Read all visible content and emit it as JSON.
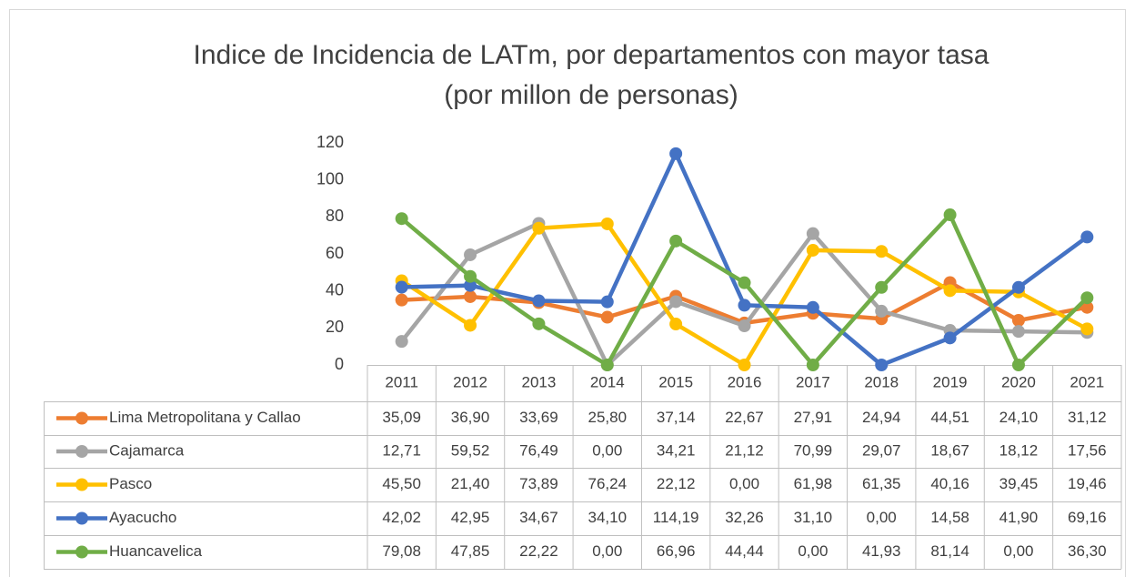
{
  "chart_data": {
    "type": "line",
    "title": "Indice de Incidencia de LATm, por departamentos con mayor tasa",
    "subtitle": "(por millon de personas)",
    "categories": [
      "2011",
      "2012",
      "2013",
      "2014",
      "2015",
      "2016",
      "2017",
      "2018",
      "2019",
      "2020",
      "2021"
    ],
    "ylim": [
      0,
      120
    ],
    "yticks": [
      0,
      20,
      40,
      60,
      80,
      100,
      120
    ],
    "grid": false,
    "series": [
      {
        "name": "Lima Metropolitana y Callao",
        "color": "#ed7d31",
        "values": [
          35.09,
          36.9,
          33.69,
          25.8,
          37.14,
          22.67,
          27.91,
          24.94,
          44.51,
          24.1,
          31.12
        ],
        "value_labels": [
          "35,09",
          "36,90",
          "33,69",
          "25,80",
          "37,14",
          "22,67",
          "27,91",
          "24,94",
          "44,51",
          "24,10",
          "31,12"
        ]
      },
      {
        "name": "Cajamarca",
        "color": "#a5a5a5",
        "values": [
          12.71,
          59.52,
          76.49,
          0.0,
          34.21,
          21.12,
          70.99,
          29.07,
          18.67,
          18.12,
          17.56
        ],
        "value_labels": [
          "12,71",
          "59,52",
          "76,49",
          "0,00",
          "34,21",
          "21,12",
          "70,99",
          "29,07",
          "18,67",
          "18,12",
          "17,56"
        ]
      },
      {
        "name": "Pasco",
        "color": "#ffc000",
        "values": [
          45.5,
          21.4,
          73.89,
          76.24,
          22.12,
          0.0,
          61.98,
          61.35,
          40.16,
          39.45,
          19.46
        ],
        "value_labels": [
          "45,50",
          "21,40",
          "73,89",
          "76,24",
          "22,12",
          "0,00",
          "61,98",
          "61,35",
          "40,16",
          "39,45",
          "19,46"
        ]
      },
      {
        "name": "Ayacucho",
        "color": "#4472c4",
        "values": [
          42.02,
          42.95,
          34.67,
          34.1,
          114.19,
          32.26,
          31.1,
          0.0,
          14.58,
          41.9,
          69.16
        ],
        "value_labels": [
          "42,02",
          "42,95",
          "34,67",
          "34,10",
          "114,19",
          "32,26",
          "31,10",
          "0,00",
          "14,58",
          "41,90",
          "69,16"
        ]
      },
      {
        "name": "Huancavelica",
        "color": "#70ad47",
        "values": [
          79.08,
          47.85,
          22.22,
          0.0,
          66.96,
          44.44,
          0.0,
          41.93,
          81.14,
          0.0,
          36.3
        ],
        "value_labels": [
          "79,08",
          "47,85",
          "22,22",
          "0,00",
          "66,96",
          "44,44",
          "0,00",
          "41,93",
          "81,14",
          "0,00",
          "36,30"
        ]
      }
    ]
  }
}
